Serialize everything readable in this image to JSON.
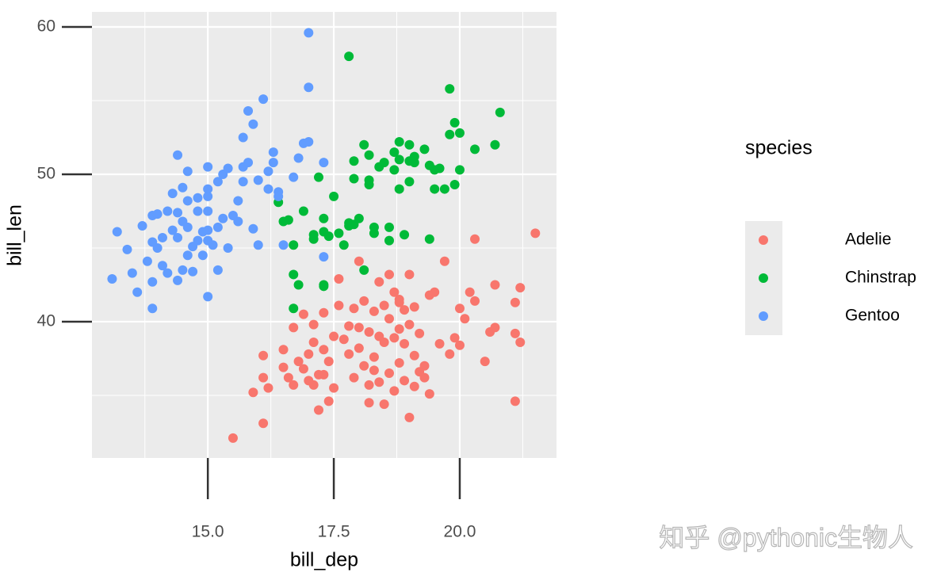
{
  "chart_data": {
    "type": "scatter",
    "xlabel": "bill_dep",
    "ylabel": "bill_len",
    "legend_title": "species",
    "xlim": [
      12.7,
      21.92
    ],
    "ylim": [
      30.75,
      61.02
    ],
    "xticks": [
      {
        "value": 15,
        "label": "15.0"
      },
      17.5,
      {
        "value": 20,
        "label": "20.0"
      }
    ],
    "yticks": [
      40,
      50,
      60
    ],
    "grid": true,
    "series": [
      {
        "name": "Adelie",
        "color": "#F8766D",
        "x": [
          15.5,
          15.9,
          16.1,
          16.2,
          16.1,
          16.1,
          16.5,
          16.5,
          16.6,
          16.7,
          16.7,
          16.8,
          16.9,
          16.9,
          17.0,
          17.0,
          17.1,
          17.1,
          17.1,
          17.2,
          17.2,
          17.3,
          17.3,
          17.3,
          17.4,
          17.4,
          17.5,
          17.5,
          17.6,
          17.6,
          17.7,
          17.8,
          17.8,
          17.9,
          17.9,
          18.0,
          18.0,
          18.0,
          18.1,
          18.1,
          18.2,
          18.2,
          18.2,
          18.3,
          18.3,
          18.3,
          18.4,
          18.4,
          18.4,
          18.5,
          18.5,
          18.5,
          18.6,
          18.6,
          18.6,
          18.7,
          18.7,
          18.7,
          18.8,
          18.8,
          18.8,
          18.9,
          18.9,
          18.9,
          19.0,
          19.0,
          19.0,
          19.1,
          19.1,
          19.1,
          19.2,
          19.3,
          19.3,
          19.4,
          19.4,
          19.5,
          19.6,
          19.7,
          19.8,
          19.9,
          20.0,
          20.0,
          20.1,
          20.2,
          20.3,
          20.3,
          20.5,
          20.6,
          20.7,
          20.7,
          21.1,
          21.1,
          21.1,
          21.2,
          21.2,
          21.5,
          19.2,
          18.8
        ],
        "values": [
          32.1,
          35.2,
          33.1,
          35.5,
          37.7,
          36.2,
          38.1,
          36.9,
          36.2,
          35.7,
          39.6,
          37.3,
          36.8,
          40.5,
          37.8,
          36.0,
          38.6,
          39.8,
          35.7,
          36.4,
          34.0,
          36.4,
          38.1,
          40.6,
          34.6,
          37.3,
          39.0,
          35.5,
          42.9,
          41.1,
          38.8,
          39.7,
          37.8,
          36.2,
          40.9,
          39.6,
          38.2,
          44.1,
          41.4,
          37.0,
          35.7,
          34.5,
          39.3,
          40.7,
          37.6,
          36.7,
          42.7,
          39.0,
          35.9,
          41.1,
          34.4,
          38.6,
          43.2,
          40.2,
          36.5,
          42.0,
          38.9,
          35.3,
          39.5,
          41.5,
          37.2,
          38.5,
          36.0,
          40.8,
          43.2,
          39.8,
          33.5,
          37.7,
          35.6,
          41.0,
          39.2,
          37.0,
          36.2,
          35.1,
          41.8,
          42.0,
          38.5,
          44.1,
          37.8,
          38.9,
          40.9,
          38.4,
          40.2,
          42.0,
          45.6,
          41.4,
          37.3,
          39.3,
          39.6,
          42.5,
          41.3,
          39.2,
          34.6,
          38.6,
          42.3,
          46.0,
          36.6,
          41.3
        ]
      },
      {
        "name": "Chinstrap",
        "color": "#00BA38",
        "x": [
          16.4,
          16.5,
          16.6,
          16.7,
          16.7,
          16.7,
          16.8,
          16.9,
          17.1,
          17.1,
          17.2,
          17.3,
          17.3,
          17.3,
          17.3,
          17.4,
          17.5,
          17.6,
          17.7,
          17.8,
          17.8,
          17.8,
          17.9,
          17.9,
          17.9,
          18.0,
          18.1,
          18.1,
          18.2,
          18.2,
          18.2,
          18.3,
          18.3,
          18.4,
          18.5,
          18.6,
          18.6,
          18.7,
          18.7,
          18.8,
          18.8,
          18.8,
          18.9,
          19.0,
          19.0,
          19.0,
          19.1,
          19.1,
          19.3,
          19.4,
          19.4,
          19.5,
          19.6,
          19.7,
          19.8,
          19.8,
          19.9,
          19.9,
          20.0,
          20.0,
          20.3,
          20.7,
          20.8,
          19.5
        ],
        "values": [
          48.1,
          46.8,
          46.9,
          45.2,
          43.2,
          40.9,
          42.5,
          47.5,
          45.6,
          45.9,
          49.8,
          47.0,
          46.1,
          42.4,
          42.5,
          45.8,
          48.5,
          46.0,
          45.2,
          46.5,
          46.7,
          58.0,
          46.6,
          50.9,
          49.7,
          47.0,
          52.0,
          43.5,
          51.3,
          49.6,
          49.3,
          46.4,
          46.0,
          50.5,
          50.8,
          46.4,
          45.5,
          51.5,
          50.3,
          52.2,
          51.0,
          49.0,
          45.9,
          52.0,
          50.9,
          49.5,
          50.8,
          51.2,
          51.7,
          50.6,
          45.6,
          49.0,
          50.4,
          49.0,
          52.7,
          55.8,
          53.5,
          49.3,
          52.8,
          50.3,
          51.7,
          52.0,
          54.2,
          50.3
        ]
      },
      {
        "name": "Gentoo",
        "color": "#619CFF",
        "x": [
          13.1,
          13.2,
          13.4,
          13.5,
          13.6,
          13.7,
          13.8,
          13.9,
          13.9,
          13.9,
          13.9,
          14.0,
          14.0,
          14.1,
          14.1,
          14.2,
          14.2,
          14.3,
          14.3,
          14.4,
          14.4,
          14.4,
          14.4,
          14.5,
          14.5,
          14.5,
          14.6,
          14.6,
          14.6,
          14.6,
          14.7,
          14.7,
          14.8,
          14.8,
          14.8,
          14.9,
          15.0,
          14.9,
          15.0,
          15.1,
          15.2,
          15.2,
          15.3,
          15.0,
          15.0,
          15.0,
          15.0,
          15.0,
          15.2,
          15.3,
          15.4,
          15.5,
          15.4,
          15.6,
          15.6,
          15.7,
          15.7,
          15.8,
          15.9,
          15.8,
          15.9,
          16.0,
          16.0,
          16.1,
          16.2,
          16.2,
          16.3,
          16.3,
          16.4,
          16.5,
          16.8,
          16.9,
          17.0,
          16.7,
          17.0,
          17.0,
          17.3,
          17.3,
          16.4,
          15.7
        ],
        "values": [
          42.9,
          46.1,
          44.9,
          43.3,
          42.0,
          46.5,
          44.1,
          47.2,
          45.4,
          42.7,
          40.9,
          47.3,
          45.0,
          43.8,
          45.7,
          47.5,
          43.3,
          48.7,
          46.2,
          51.3,
          47.4,
          45.7,
          42.8,
          49.1,
          46.8,
          43.5,
          50.2,
          48.2,
          46.4,
          44.5,
          45.1,
          43.4,
          48.4,
          47.5,
          45.5,
          46.1,
          41.7,
          44.5,
          49.0,
          45.2,
          46.4,
          49.5,
          50.0,
          50.5,
          47.5,
          46.2,
          48.5,
          45.5,
          43.5,
          47.0,
          50.4,
          47.2,
          45.0,
          48.2,
          46.8,
          49.5,
          52.5,
          54.3,
          53.4,
          50.8,
          46.3,
          49.6,
          45.2,
          55.1,
          50.2,
          49.0,
          51.5,
          50.8,
          48.8,
          45.2,
          51.1,
          52.1,
          52.2,
          49.8,
          55.9,
          59.6,
          50.8,
          44.4,
          48.5,
          50.5
        ]
      }
    ]
  },
  "watermark": "知乎 @pythonic生物人"
}
